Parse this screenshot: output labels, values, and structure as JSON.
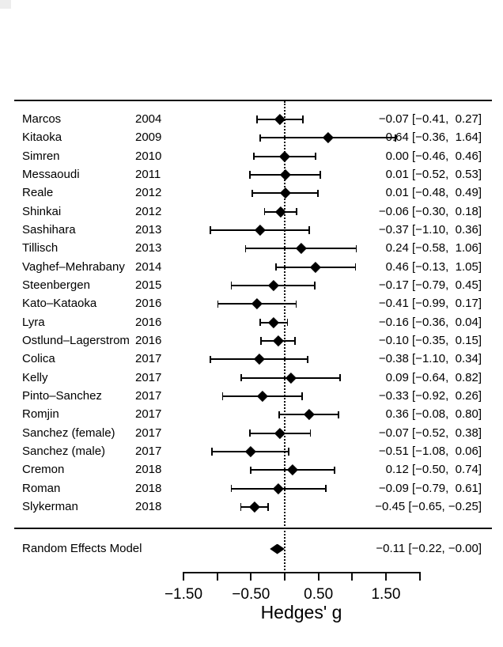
{
  "colors": {
    "foreground": "#000000",
    "background": "#ffffff"
  },
  "chart_data": {
    "type": "forest",
    "xlabel": "Hedges' g",
    "xlim": [
      -1.5,
      2.0
    ],
    "tick_step": 0.5,
    "zero_reference_line": 0,
    "grid": false,
    "labeled_ticks": [
      {
        "value": -1.5,
        "label": "−1.50"
      },
      {
        "value": -0.5,
        "label": "−0.50"
      },
      {
        "value": 0.5,
        "label": "0.50"
      },
      {
        "value": 1.5,
        "label": "1.50"
      }
    ],
    "studies": [
      {
        "name": "Marcos",
        "year": "2004",
        "g": -0.07,
        "ci_low": -0.41,
        "ci_high": 0.27,
        "estimate_text": "−0.07 [−0.41,  0.27]"
      },
      {
        "name": "Kitaoka",
        "year": "2009",
        "g": 0.64,
        "ci_low": -0.36,
        "ci_high": 1.64,
        "estimate_text": "0.64 [−0.36,  1.64]"
      },
      {
        "name": "Simren",
        "year": "2010",
        "g": 0.0,
        "ci_low": -0.46,
        "ci_high": 0.46,
        "estimate_text": "0.00 [−0.46,  0.46]"
      },
      {
        "name": "Messaoudi",
        "year": "2011",
        "g": 0.01,
        "ci_low": -0.52,
        "ci_high": 0.53,
        "estimate_text": "0.01 [−0.52,  0.53]"
      },
      {
        "name": "Reale",
        "year": "2012",
        "g": 0.01,
        "ci_low": -0.48,
        "ci_high": 0.49,
        "estimate_text": "0.01 [−0.48,  0.49]"
      },
      {
        "name": "Shinkai",
        "year": "2012",
        "g": -0.06,
        "ci_low": -0.3,
        "ci_high": 0.18,
        "estimate_text": "−0.06 [−0.30,  0.18]"
      },
      {
        "name": "Sashihara",
        "year": "2013",
        "g": -0.37,
        "ci_low": -1.1,
        "ci_high": 0.36,
        "estimate_text": "−0.37 [−1.10,  0.36]"
      },
      {
        "name": "Tillisch",
        "year": "2013",
        "g": 0.24,
        "ci_low": -0.58,
        "ci_high": 1.06,
        "estimate_text": "0.24 [−0.58,  1.06]"
      },
      {
        "name": "Vaghef–Mehrabany",
        "year": "2014",
        "g": 0.46,
        "ci_low": -0.13,
        "ci_high": 1.05,
        "estimate_text": "0.46 [−0.13,  1.05]"
      },
      {
        "name": "Steenbergen",
        "year": "2015",
        "g": -0.17,
        "ci_low": -0.79,
        "ci_high": 0.45,
        "estimate_text": "−0.17 [−0.79,  0.45]"
      },
      {
        "name": "Kato–Kataoka",
        "year": "2016",
        "g": -0.41,
        "ci_low": -0.99,
        "ci_high": 0.17,
        "estimate_text": "−0.41 [−0.99,  0.17]"
      },
      {
        "name": "Lyra",
        "year": "2016",
        "g": -0.16,
        "ci_low": -0.36,
        "ci_high": 0.04,
        "estimate_text": "−0.16 [−0.36,  0.04]"
      },
      {
        "name": "Ostlund–Lagerstrom",
        "year": "2016",
        "g": -0.1,
        "ci_low": -0.35,
        "ci_high": 0.15,
        "estimate_text": "−0.10 [−0.35,  0.15]"
      },
      {
        "name": "Colica",
        "year": "2017",
        "g": -0.38,
        "ci_low": -1.1,
        "ci_high": 0.34,
        "estimate_text": "−0.38 [−1.10,  0.34]"
      },
      {
        "name": "Kelly",
        "year": "2017",
        "g": 0.09,
        "ci_low": -0.64,
        "ci_high": 0.82,
        "estimate_text": "0.09 [−0.64,  0.82]"
      },
      {
        "name": "Pinto–Sanchez",
        "year": "2017",
        "g": -0.33,
        "ci_low": -0.92,
        "ci_high": 0.26,
        "estimate_text": "−0.33 [−0.92,  0.26]"
      },
      {
        "name": "Romjin",
        "year": "2017",
        "g": 0.36,
        "ci_low": -0.08,
        "ci_high": 0.8,
        "estimate_text": "0.36 [−0.08,  0.80]"
      },
      {
        "name": "Sanchez (female)",
        "year": "2017",
        "g": -0.07,
        "ci_low": -0.52,
        "ci_high": 0.38,
        "estimate_text": "−0.07 [−0.52,  0.38]"
      },
      {
        "name": "Sanchez (male)",
        "year": "2017",
        "g": -0.51,
        "ci_low": -1.08,
        "ci_high": 0.06,
        "estimate_text": "−0.51 [−1.08,  0.06]"
      },
      {
        "name": "Cremon",
        "year": "2018",
        "g": 0.12,
        "ci_low": -0.5,
        "ci_high": 0.74,
        "estimate_text": "0.12 [−0.50,  0.74]"
      },
      {
        "name": "Roman",
        "year": "2018",
        "g": -0.09,
        "ci_low": -0.79,
        "ci_high": 0.61,
        "estimate_text": "−0.09 [−0.79,  0.61]"
      },
      {
        "name": "Slykerman",
        "year": "2018",
        "g": -0.45,
        "ci_low": -0.65,
        "ci_high": -0.25,
        "estimate_text": "−0.45 [−0.65, −0.25]"
      }
    ],
    "summary": {
      "label": "Random Effects Model",
      "g": -0.11,
      "ci_low": -0.22,
      "ci_high": 0.0,
      "estimate_text": "−0.11 [−0.22, −0.00]"
    }
  }
}
